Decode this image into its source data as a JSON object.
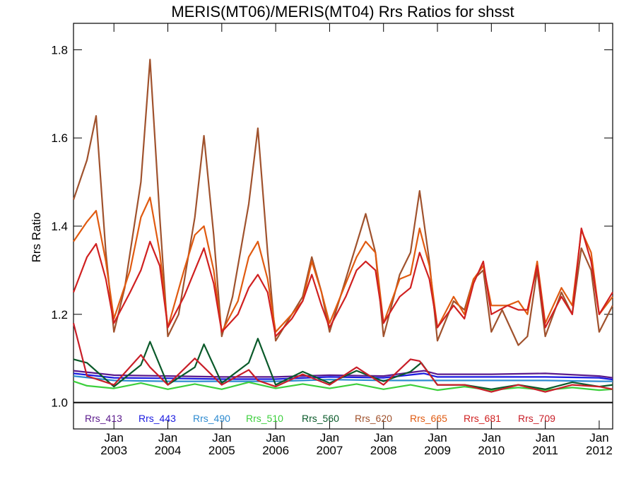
{
  "chart_data": {
    "type": "line",
    "title": "MERIS(MT06)/MERIS(MT04)  Rrs Ratios for shsst",
    "xlabel": "",
    "ylabel": "Rrs Ratio",
    "xlim": [
      2002.25,
      2012.25
    ],
    "ylim": [
      0.94,
      1.86
    ],
    "y_ticks": [
      1.0,
      1.2,
      1.4,
      1.6,
      1.8
    ],
    "y_tick_labels": [
      "1.0",
      "1.2",
      "1.4",
      "1.6",
      "1.8"
    ],
    "x_ticks": [
      2003,
      2004,
      2005,
      2006,
      2007,
      2008,
      2009,
      2010,
      2011,
      2012
    ],
    "x_tick_month": "Jan",
    "x_tick_years": [
      "2003",
      "2004",
      "2005",
      "2006",
      "2007",
      "2008",
      "2009",
      "2010",
      "2011",
      "2012"
    ],
    "reference_line": 1.0,
    "grid": false,
    "legend": "bottom",
    "series": [
      {
        "name": "Rrs_413",
        "color": "#5b1a8c",
        "x": [
          2002.25,
          2003.0,
          2004.0,
          2005.0,
          2006.0,
          2007.0,
          2008.0,
          2008.75,
          2009.0,
          2010.0,
          2011.0,
          2012.0,
          2012.25
        ],
        "y": [
          1.072,
          1.062,
          1.06,
          1.058,
          1.058,
          1.062,
          1.06,
          1.072,
          1.064,
          1.064,
          1.066,
          1.06,
          1.056
        ]
      },
      {
        "name": "Rrs_443",
        "color": "#1a1ae0",
        "x": [
          2002.25,
          2003.0,
          2004.0,
          2005.0,
          2006.0,
          2007.0,
          2008.0,
          2008.75,
          2009.0,
          2010.0,
          2011.0,
          2012.0,
          2012.25
        ],
        "y": [
          1.066,
          1.056,
          1.055,
          1.053,
          1.053,
          1.058,
          1.056,
          1.066,
          1.058,
          1.058,
          1.058,
          1.056,
          1.052
        ]
      },
      {
        "name": "Rrs_490",
        "color": "#2e8bd0",
        "x": [
          2002.25,
          2003.0,
          2004.0,
          2005.0,
          2006.0,
          2007.0,
          2008.0,
          2009.0,
          2010.0,
          2011.0,
          2012.0,
          2012.25
        ],
        "y": [
          1.06,
          1.05,
          1.048,
          1.048,
          1.048,
          1.052,
          1.05,
          1.05,
          1.05,
          1.05,
          1.048,
          1.048
        ]
      },
      {
        "name": "Rrs_510",
        "color": "#3ccf3c",
        "x": [
          2002.25,
          2002.5,
          2003.0,
          2003.5,
          2004.0,
          2004.5,
          2005.0,
          2005.5,
          2006.0,
          2006.5,
          2007.0,
          2007.5,
          2008.0,
          2008.5,
          2009.0,
          2009.5,
          2010.0,
          2010.5,
          2011.0,
          2011.5,
          2012.0,
          2012.25
        ],
        "y": [
          1.048,
          1.038,
          1.032,
          1.044,
          1.03,
          1.042,
          1.03,
          1.046,
          1.032,
          1.042,
          1.032,
          1.042,
          1.03,
          1.04,
          1.028,
          1.036,
          1.028,
          1.034,
          1.028,
          1.034,
          1.028,
          1.03
        ]
      },
      {
        "name": "Rrs_560",
        "color": "#0a5a2a",
        "x": [
          2002.25,
          2002.5,
          2003.0,
          2003.5,
          2003.67,
          2004.0,
          2004.5,
          2004.67,
          2005.0,
          2005.5,
          2005.67,
          2006.0,
          2006.5,
          2007.0,
          2007.5,
          2008.0,
          2008.5,
          2008.7,
          2009.0,
          2009.5,
          2010.0,
          2010.5,
          2011.0,
          2011.5,
          2012.0,
          2012.25
        ],
        "y": [
          1.098,
          1.09,
          1.036,
          1.085,
          1.138,
          1.04,
          1.08,
          1.132,
          1.044,
          1.09,
          1.145,
          1.04,
          1.07,
          1.044,
          1.072,
          1.048,
          1.07,
          1.09,
          1.04,
          1.04,
          1.03,
          1.04,
          1.03,
          1.046,
          1.036,
          1.04
        ]
      },
      {
        "name": "Rrs_620",
        "color": "#a0522d",
        "x": [
          2002.25,
          2002.5,
          2002.67,
          2002.85,
          2003.0,
          2003.2,
          2003.5,
          2003.67,
          2003.85,
          2004.0,
          2004.2,
          2004.5,
          2004.67,
          2004.85,
          2005.0,
          2005.2,
          2005.5,
          2005.67,
          2005.85,
          2006.0,
          2006.3,
          2006.5,
          2006.67,
          2006.85,
          2007.0,
          2007.3,
          2007.5,
          2007.67,
          2007.85,
          2008.0,
          2008.3,
          2008.5,
          2008.67,
          2008.85,
          2009.0,
          2009.3,
          2009.5,
          2009.67,
          2009.85,
          2010.0,
          2010.2,
          2010.5,
          2010.67,
          2010.85,
          2011.0,
          2011.3,
          2011.5,
          2011.67,
          2011.85,
          2012.0,
          2012.25
        ],
        "y": [
          1.46,
          1.55,
          1.65,
          1.34,
          1.16,
          1.26,
          1.5,
          1.778,
          1.42,
          1.15,
          1.2,
          1.42,
          1.605,
          1.38,
          1.15,
          1.24,
          1.45,
          1.622,
          1.34,
          1.14,
          1.2,
          1.24,
          1.33,
          1.25,
          1.16,
          1.28,
          1.36,
          1.428,
          1.34,
          1.15,
          1.29,
          1.34,
          1.48,
          1.32,
          1.14,
          1.23,
          1.21,
          1.28,
          1.3,
          1.16,
          1.21,
          1.13,
          1.15,
          1.3,
          1.15,
          1.25,
          1.2,
          1.35,
          1.3,
          1.16,
          1.22
        ]
      },
      {
        "name": "Rrs_665",
        "color": "#e05a10",
        "x": [
          2002.25,
          2002.5,
          2002.67,
          2002.85,
          2003.0,
          2003.3,
          2003.5,
          2003.67,
          2003.85,
          2004.0,
          2004.3,
          2004.5,
          2004.67,
          2004.85,
          2005.0,
          2005.3,
          2005.5,
          2005.67,
          2005.85,
          2006.0,
          2006.3,
          2006.5,
          2006.67,
          2006.85,
          2007.0,
          2007.3,
          2007.5,
          2007.67,
          2007.85,
          2008.0,
          2008.3,
          2008.5,
          2008.67,
          2008.85,
          2009.0,
          2009.3,
          2009.5,
          2009.67,
          2009.85,
          2010.0,
          2010.3,
          2010.5,
          2010.67,
          2010.85,
          2011.0,
          2011.3,
          2011.5,
          2011.67,
          2011.85,
          2012.0,
          2012.25
        ],
        "y": [
          1.365,
          1.41,
          1.435,
          1.32,
          1.19,
          1.3,
          1.42,
          1.465,
          1.34,
          1.17,
          1.3,
          1.38,
          1.4,
          1.3,
          1.16,
          1.23,
          1.33,
          1.365,
          1.28,
          1.16,
          1.2,
          1.23,
          1.32,
          1.25,
          1.18,
          1.27,
          1.33,
          1.365,
          1.34,
          1.18,
          1.28,
          1.29,
          1.395,
          1.31,
          1.17,
          1.24,
          1.2,
          1.28,
          1.31,
          1.22,
          1.22,
          1.23,
          1.2,
          1.32,
          1.18,
          1.26,
          1.22,
          1.39,
          1.34,
          1.2,
          1.24
        ]
      },
      {
        "name": "Rrs_681",
        "color": "#d02020",
        "x": [
          2002.25,
          2002.5,
          2002.67,
          2002.85,
          2003.0,
          2003.3,
          2003.5,
          2003.67,
          2003.85,
          2004.0,
          2004.3,
          2004.5,
          2004.67,
          2004.85,
          2005.0,
          2005.3,
          2005.5,
          2005.67,
          2005.85,
          2006.0,
          2006.3,
          2006.5,
          2006.67,
          2006.85,
          2007.0,
          2007.3,
          2007.5,
          2007.67,
          2007.85,
          2008.0,
          2008.3,
          2008.5,
          2008.67,
          2008.85,
          2009.0,
          2009.3,
          2009.5,
          2009.67,
          2009.85,
          2010.0,
          2010.3,
          2010.5,
          2010.67,
          2010.85,
          2011.0,
          2011.3,
          2011.5,
          2011.67,
          2011.85,
          2012.0,
          2012.25
        ],
        "y": [
          1.25,
          1.33,
          1.36,
          1.28,
          1.18,
          1.25,
          1.3,
          1.365,
          1.31,
          1.17,
          1.24,
          1.3,
          1.35,
          1.27,
          1.16,
          1.2,
          1.26,
          1.29,
          1.25,
          1.15,
          1.19,
          1.23,
          1.29,
          1.22,
          1.17,
          1.24,
          1.3,
          1.32,
          1.3,
          1.18,
          1.24,
          1.26,
          1.34,
          1.28,
          1.17,
          1.22,
          1.19,
          1.27,
          1.32,
          1.2,
          1.22,
          1.21,
          1.21,
          1.31,
          1.17,
          1.24,
          1.2,
          1.395,
          1.32,
          1.2,
          1.25
        ]
      },
      {
        "name": "Rrs_709",
        "color": "#c81e28",
        "x": [
          2002.25,
          2002.5,
          2003.0,
          2003.5,
          2003.67,
          2004.0,
          2004.5,
          2004.67,
          2005.0,
          2005.5,
          2005.67,
          2006.0,
          2006.5,
          2007.0,
          2007.5,
          2008.0,
          2008.5,
          2008.67,
          2009.0,
          2009.5,
          2010.0,
          2010.5,
          2011.0,
          2011.5,
          2012.0,
          2012.25
        ],
        "y": [
          1.18,
          1.06,
          1.04,
          1.108,
          1.08,
          1.04,
          1.1,
          1.08,
          1.04,
          1.074,
          1.05,
          1.036,
          1.064,
          1.04,
          1.08,
          1.04,
          1.098,
          1.094,
          1.04,
          1.04,
          1.024,
          1.04,
          1.024,
          1.04,
          1.036,
          1.03
        ]
      }
    ]
  }
}
